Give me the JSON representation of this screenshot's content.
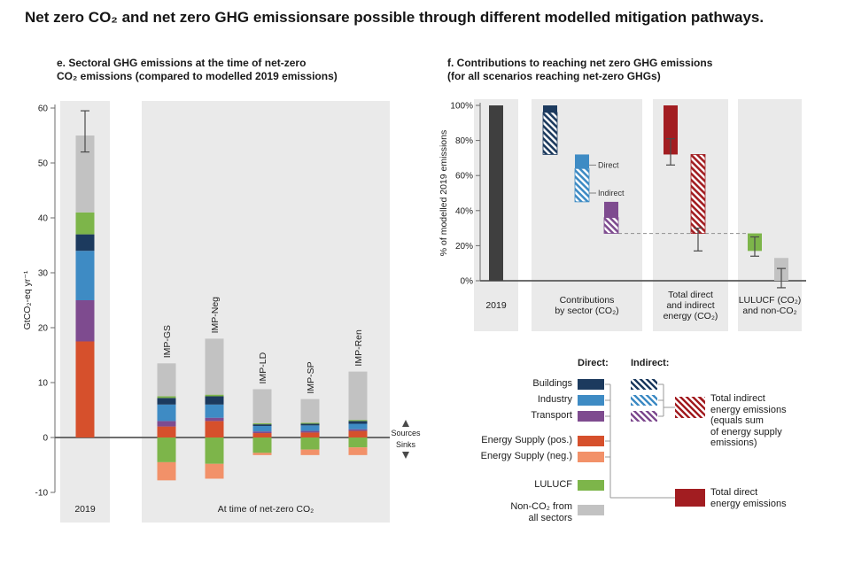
{
  "page": {
    "title": "Net zero CO₂ and net zero GHG emissionsare possible through different modelled mitigation pathways."
  },
  "colors": {
    "buildings": "#1c3a5e",
    "industry": "#3e8bc4",
    "transport": "#7e4b8f",
    "energy_pos": "#d6502c",
    "energy_neg": "#f29169",
    "lulucf": "#7db54a",
    "non_co2": "#c2c2c2",
    "total_2019": "#3f3f3f",
    "energy_total": "#a21d21",
    "band_bg": "#eaeaea",
    "axis": "#6b6b6b",
    "text": "#1c1c1c"
  },
  "chart_data": [
    {
      "id": "panel_e",
      "type": "bar",
      "title": "e. Sectoral GHG emissions at the time of net-zero\nCO₂ emissions (compared to modelled 2019 emissions)",
      "ylabel": "GtCO₂-eq yr⁻¹",
      "ylim": [
        -10,
        60
      ],
      "yticks": [
        -10,
        0,
        10,
        20,
        30,
        40,
        50,
        60
      ],
      "grid": false,
      "stack_order": [
        "energy_pos",
        "transport",
        "industry",
        "buildings",
        "lulucf",
        "non_co2"
      ],
      "sink_order": [
        "lulucf",
        "energy_neg"
      ],
      "group_labels": [
        "2019",
        "At time of net-zero CO₂"
      ],
      "source_sink_labels": {
        "sources": "Sources",
        "sinks": "Sinks"
      },
      "bars": [
        {
          "label": "2019",
          "rotated_label": false,
          "sources": {
            "energy_pos": 17.5,
            "transport": 7.5,
            "industry": 9.0,
            "buildings": 3.0,
            "lulucf": 4.0,
            "non_co2": 14.0
          },
          "sinks": {},
          "error": [
            52,
            59.5
          ]
        },
        {
          "label": "IMP-GS",
          "rotated_label": true,
          "sources": {
            "energy_pos": 2.0,
            "transport": 1.0,
            "industry": 3.0,
            "buildings": 1.2,
            "lulucf": 0.3,
            "non_co2": 6.0
          },
          "sinks": {
            "lulucf": 4.5,
            "energy_neg": 3.3
          }
        },
        {
          "label": "IMP-Neg",
          "rotated_label": true,
          "sources": {
            "energy_pos": 3.0,
            "transport": 0.6,
            "industry": 2.4,
            "buildings": 1.5,
            "lulucf": 0.3,
            "non_co2": 10.2
          },
          "sinks": {
            "lulucf": 4.8,
            "energy_neg": 2.7
          }
        },
        {
          "label": "IMP-LD",
          "rotated_label": true,
          "sources": {
            "energy_pos": 0.8,
            "transport": 0.3,
            "industry": 1.0,
            "buildings": 0.3,
            "lulucf": 0.2,
            "non_co2": 6.2
          },
          "sinks": {
            "lulucf": 2.8,
            "energy_neg": 0.4
          }
        },
        {
          "label": "IMP-SP",
          "rotated_label": true,
          "sources": {
            "energy_pos": 0.9,
            "transport": 0.3,
            "industry": 1.0,
            "buildings": 0.3,
            "lulucf": 0.2,
            "non_co2": 4.3
          },
          "sinks": {
            "lulucf": 2.2,
            "energy_neg": 1.0
          }
        },
        {
          "label": "IMP-Ren",
          "rotated_label": true,
          "sources": {
            "energy_pos": 1.2,
            "transport": 0.3,
            "industry": 1.0,
            "buildings": 0.5,
            "lulucf": 0.2,
            "non_co2": 8.8
          },
          "sinks": {
            "lulucf": 1.8,
            "energy_neg": 1.4
          }
        }
      ]
    },
    {
      "id": "panel_f",
      "type": "waterfall",
      "title": "f. Contributions to reaching net zero GHG emissions\n(for all scenarios reaching net-zero GHGs)",
      "ylabel": "% of modelled 2019 emissions",
      "ylim": [
        -5,
        100
      ],
      "yticks": [
        0,
        20,
        40,
        60,
        80,
        100
      ],
      "grid": false,
      "groups": [
        {
          "label": "2019"
        },
        {
          "label": "Contributions\nby sector (CO₂)"
        },
        {
          "label": "Total direct\nand indirect\nenergy (CO₂)"
        },
        {
          "label": "LULUCF (CO₂)\nand non-CO₂"
        }
      ],
      "bars": [
        {
          "name": "2019-total",
          "col": "c2019",
          "color": "total_2019",
          "style": "solid",
          "top": 100,
          "bottom": 0
        },
        {
          "name": "buildings-direct",
          "col": "buildings",
          "color": "buildings",
          "style": "solid",
          "top": 100,
          "bottom": 96
        },
        {
          "name": "buildings-indirect",
          "col": "buildings",
          "color": "buildings",
          "style": "hatch",
          "top": 96,
          "bottom": 72
        },
        {
          "name": "industry-direct",
          "col": "industry",
          "color": "industry",
          "style": "solid",
          "top": 72,
          "bottom": 64
        },
        {
          "name": "industry-indirect",
          "col": "industry",
          "color": "industry",
          "style": "hatch",
          "top": 64,
          "bottom": 45
        },
        {
          "name": "transport-direct",
          "col": "transport",
          "color": "transport",
          "style": "solid",
          "top": 45,
          "bottom": 36
        },
        {
          "name": "transport-indirect",
          "col": "transport",
          "color": "transport",
          "style": "hatch",
          "top": 36,
          "bottom": 27
        },
        {
          "name": "energy-direct-total",
          "col": "energy_direct",
          "color": "energy_total",
          "style": "solid",
          "top": 100,
          "bottom": 72,
          "error": [
            66,
            81
          ]
        },
        {
          "name": "energy-indirect-total",
          "col": "energy_indirect",
          "color": "energy_total",
          "style": "hatch",
          "top": 72,
          "bottom": 27,
          "error": [
            17,
            30
          ]
        },
        {
          "name": "lulucf",
          "col": "lulucf",
          "color": "lulucf",
          "style": "solid",
          "top": 27,
          "bottom": 17,
          "error": [
            14,
            25
          ]
        },
        {
          "name": "non-co2",
          "col": "non_co2",
          "color": "non_co2",
          "style": "solid",
          "top": 13,
          "bottom": 0,
          "error": [
            -4,
            7
          ]
        }
      ],
      "dashed_level": 27,
      "annotations": [
        {
          "text": "Direct",
          "level": 66
        },
        {
          "text": "Indirect",
          "level": 50
        }
      ]
    }
  ],
  "legend": {
    "direct_header": "Direct:",
    "indirect_header": "Indirect:",
    "buildings": "Buildings",
    "industry": "Industry",
    "transport": "Transport",
    "energy_pos": "Energy Supply (pos.)",
    "energy_neg": "Energy Supply (neg.)",
    "lulucf": "LULUCF",
    "non_co2": "Non-CO₂ from\nall sectors",
    "total_indirect": "Total indirect\nenergy emissions\n(equals sum\nof energy supply\nemissions)",
    "total_direct": "Total direct\nenergy emissions"
  }
}
